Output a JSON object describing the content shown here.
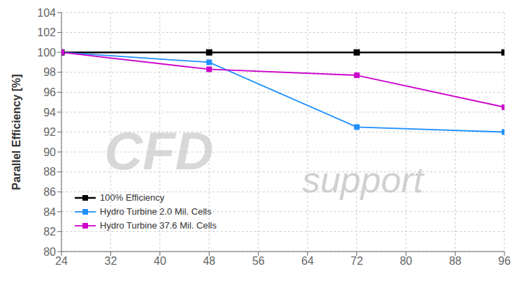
{
  "chart_data": {
    "type": "line",
    "y_label": "Parallel Efficiency [%]",
    "x": [
      24,
      48,
      72,
      96
    ],
    "series": [
      {
        "name": "100% Efficiency",
        "color": "#000000",
        "marker": "square",
        "values": [
          100,
          100,
          100,
          100
        ]
      },
      {
        "name": "Hydro Turbine 2.0 Mil. Cells",
        "color": "#1E90FF",
        "marker": "square",
        "values": [
          100,
          99.0,
          92.5,
          92.0
        ]
      },
      {
        "name": "Hydro Turbine 37.6 Mil. Cells",
        "color": "#CC00CC",
        "marker": "square",
        "values": [
          100,
          98.3,
          97.7,
          94.5
        ]
      }
    ],
    "xlim": [
      24,
      96
    ],
    "xticks": [
      24,
      32,
      40,
      48,
      56,
      64,
      72,
      80,
      88,
      96
    ],
    "ylim": [
      80,
      104
    ],
    "yticks": [
      80,
      82,
      84,
      86,
      88,
      90,
      92,
      94,
      96,
      98,
      100,
      102,
      104
    ],
    "grid": true,
    "legend": "lower left",
    "annotations": [
      {
        "text": "CFD",
        "color": "#d8d8d8"
      },
      {
        "text": "support",
        "color": "#d0d0d0"
      }
    ]
  }
}
